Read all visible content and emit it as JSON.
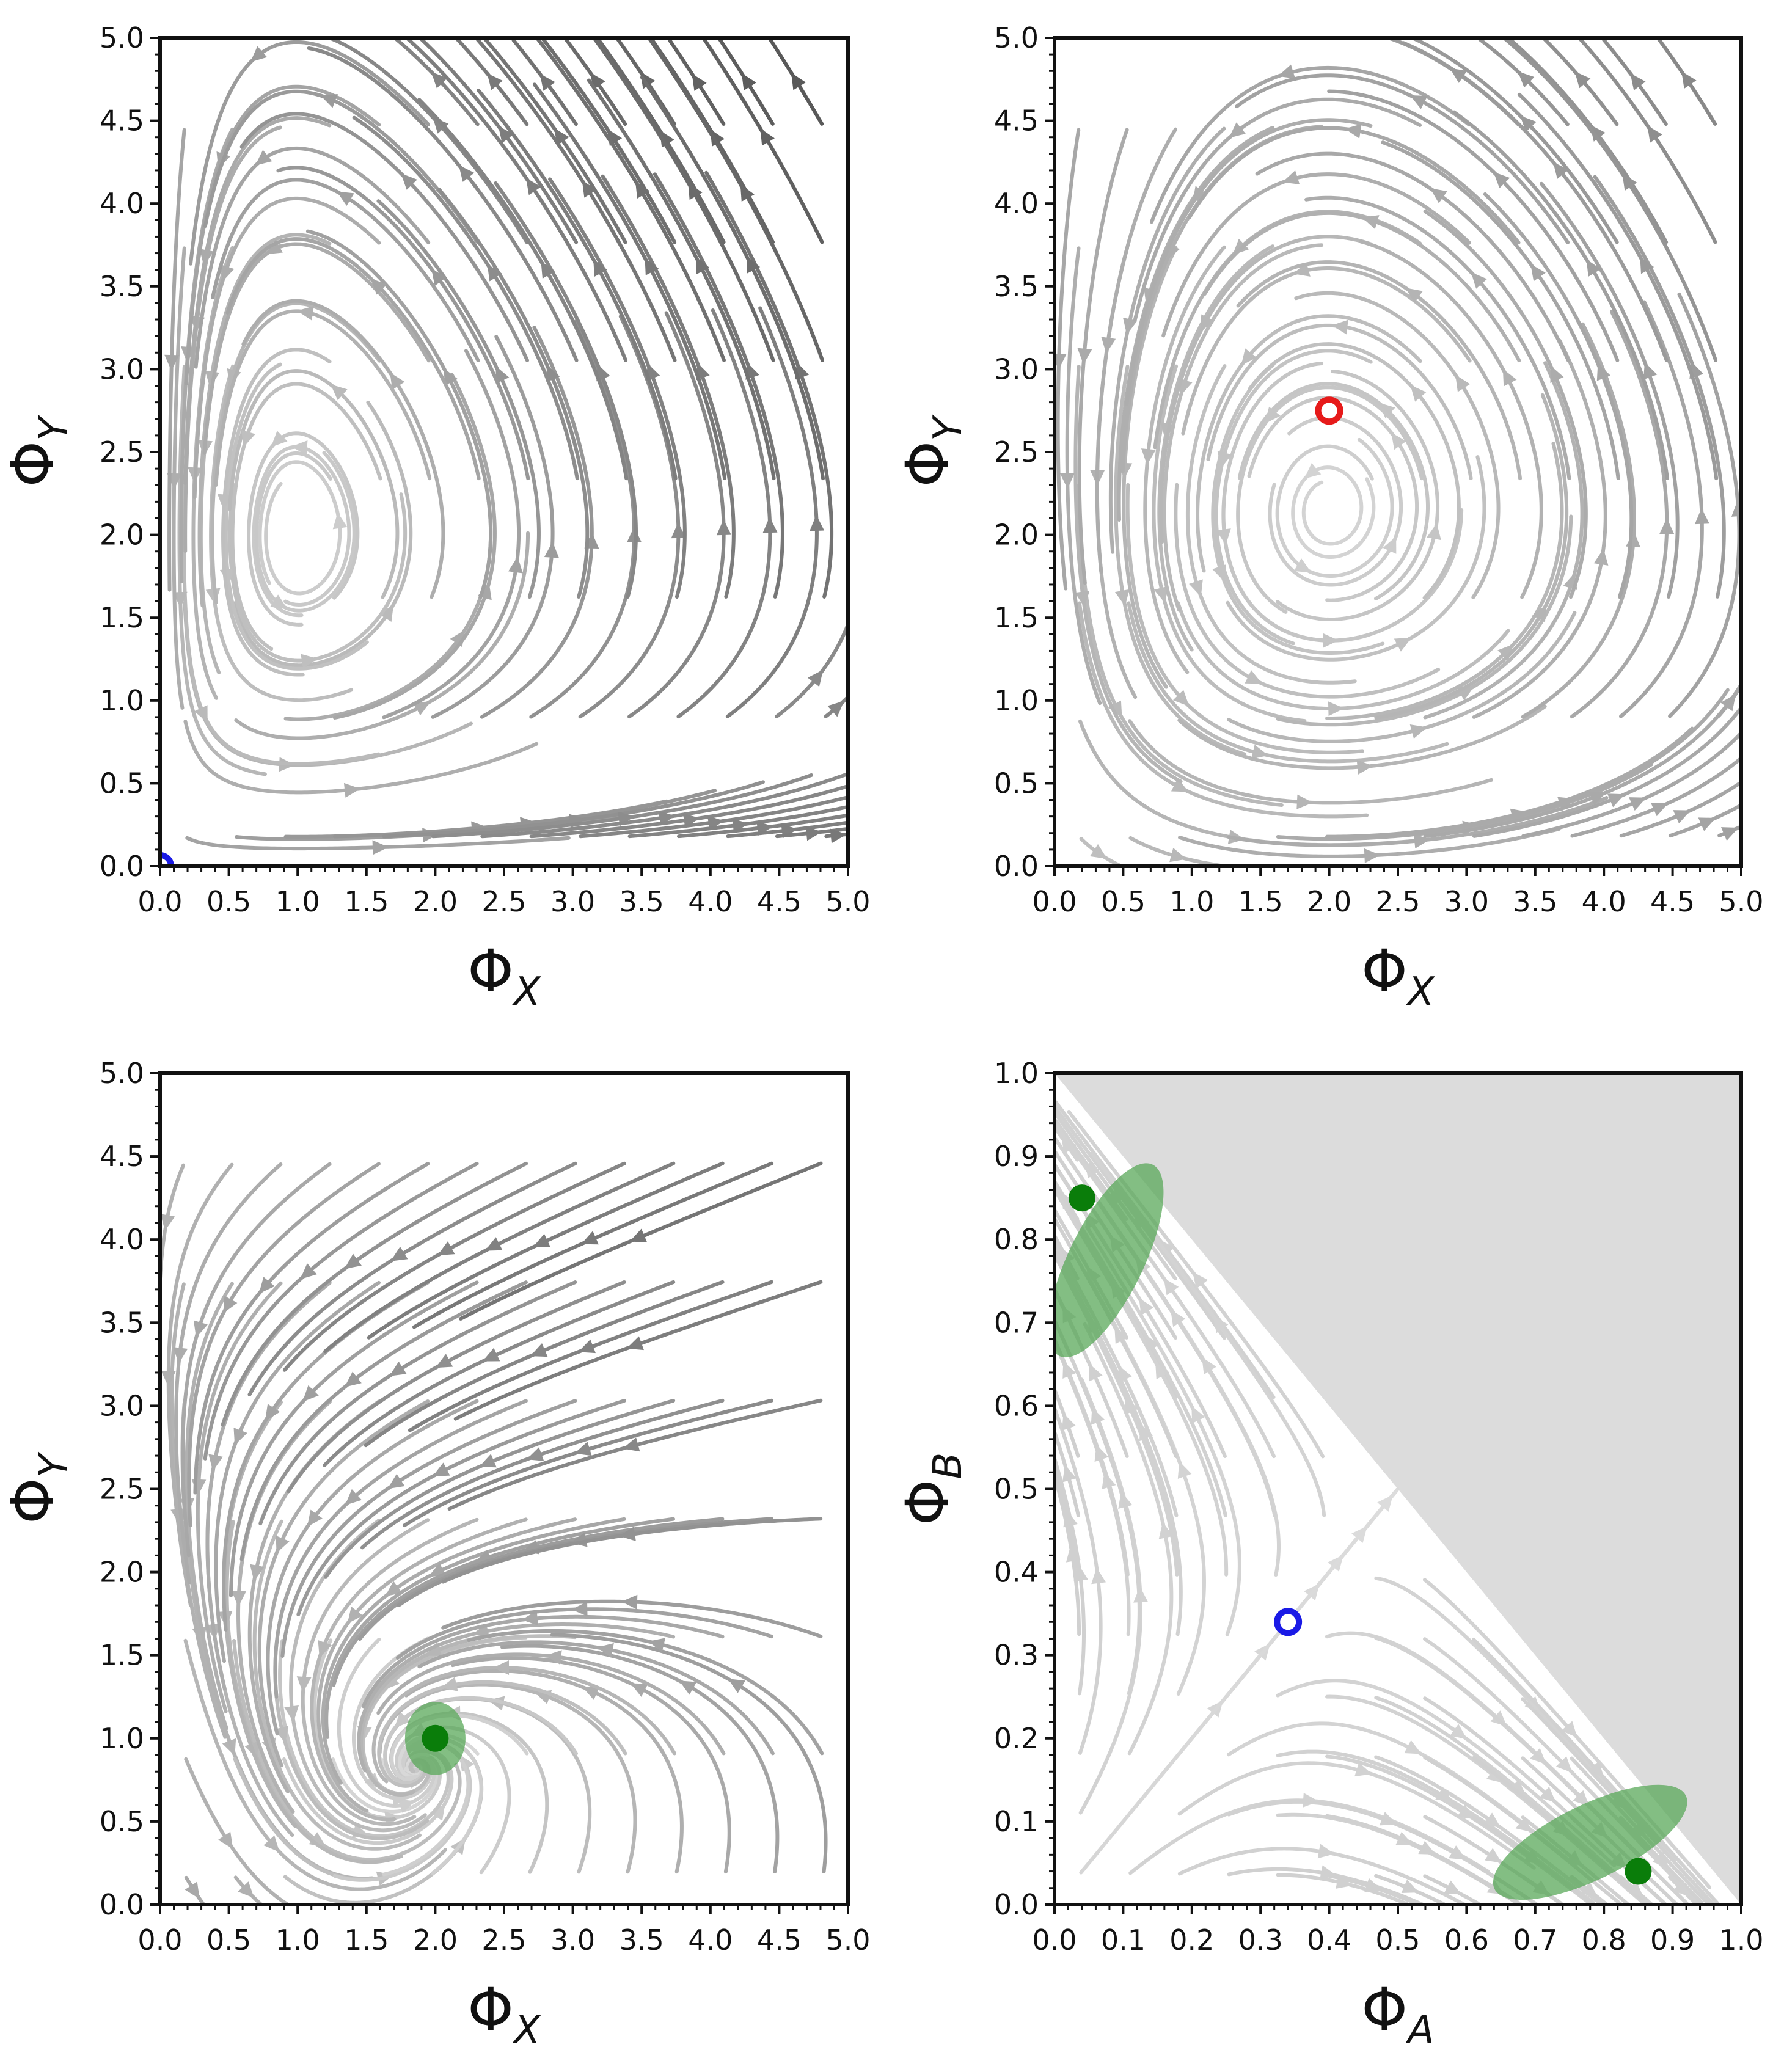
{
  "colors": {
    "stream_dark": "#555555",
    "stream_light": "#dddddd",
    "fixed_unstable_blue": "#1a1ae6",
    "fixed_unstable_red": "#e61a1a",
    "fixed_stable_green": "#0a7d0a",
    "basin_green": "#5aa85a",
    "forbidden_region": "#dcdcdc"
  },
  "chart_data": [
    {
      "type": "streamplot",
      "panel": "top-left",
      "xlabel": "Φ_X",
      "ylabel": "Φ_Y",
      "xlim": [
        0,
        5
      ],
      "ylim": [
        0,
        5
      ],
      "x_ticks": [
        "0.0",
        "0.5",
        "1.0",
        "1.5",
        "2.0",
        "2.5",
        "3.0",
        "3.5",
        "4.0",
        "4.5",
        "5.0"
      ],
      "y_ticks": [
        "0.0",
        "0.5",
        "1.0",
        "1.5",
        "2.0",
        "2.5",
        "3.0",
        "3.5",
        "4.0",
        "4.5",
        "5.0"
      ],
      "dynamics": "closed orbits around a center",
      "center": [
        1.0,
        2.0
      ],
      "fixed_points": [
        {
          "x": 0.0,
          "y": 0.0,
          "kind": "unstable",
          "color": "blue"
        }
      ]
    },
    {
      "type": "streamplot",
      "panel": "top-right",
      "xlabel": "Φ_X",
      "ylabel": "Φ_Y",
      "xlim": [
        0,
        5
      ],
      "ylim": [
        0,
        5
      ],
      "x_ticks": [
        "0.0",
        "0.5",
        "1.0",
        "1.5",
        "2.0",
        "2.5",
        "3.0",
        "3.5",
        "4.0",
        "4.5",
        "5.0"
      ],
      "y_ticks": [
        "0.0",
        "0.5",
        "1.0",
        "1.5",
        "2.0",
        "2.5",
        "3.0",
        "3.5",
        "4.0",
        "4.5",
        "5.0"
      ],
      "dynamics": "unstable spiral",
      "fixed_points": [
        {
          "x": 2.0,
          "y": 2.75,
          "kind": "unstable",
          "color": "red"
        }
      ]
    },
    {
      "type": "streamplot",
      "panel": "bottom-left",
      "xlabel": "Φ_X",
      "ylabel": "Φ_Y",
      "xlim": [
        0,
        5
      ],
      "ylim": [
        0,
        5
      ],
      "x_ticks": [
        "0.0",
        "0.5",
        "1.0",
        "1.5",
        "2.0",
        "2.5",
        "3.0",
        "3.5",
        "4.0",
        "4.5",
        "5.0"
      ],
      "y_ticks": [
        "0.0",
        "0.5",
        "1.0",
        "1.5",
        "2.0",
        "2.5",
        "3.0",
        "3.5",
        "4.0",
        "4.5",
        "5.0"
      ],
      "dynamics": "stable focus",
      "fixed_points": [
        {
          "x": 2.0,
          "y": 1.0,
          "kind": "stable",
          "color": "green",
          "basin_rx": 0.22,
          "basin_ry": 0.22
        }
      ]
    },
    {
      "type": "streamplot",
      "panel": "bottom-right",
      "xlabel": "Φ_A",
      "ylabel": "Φ_B",
      "xlim": [
        0,
        1
      ],
      "ylim": [
        0,
        1
      ],
      "x_ticks": [
        "0.0",
        "0.1",
        "0.2",
        "0.3",
        "0.4",
        "0.5",
        "0.6",
        "0.7",
        "0.8",
        "0.9",
        "1.0"
      ],
      "y_ticks": [
        "0.0",
        "0.1",
        "0.2",
        "0.3",
        "0.4",
        "0.5",
        "0.6",
        "0.7",
        "0.8",
        "0.9",
        "1.0"
      ],
      "dynamics": "bistable, simplex constraint A+B<=1",
      "forbidden_region": "A + B > 1",
      "fixed_points": [
        {
          "x": 0.04,
          "y": 0.85,
          "kind": "stable",
          "color": "green"
        },
        {
          "x": 0.34,
          "y": 0.34,
          "kind": "unstable",
          "color": "blue"
        },
        {
          "x": 0.85,
          "y": 0.04,
          "kind": "stable",
          "color": "green"
        }
      ],
      "basins": [
        {
          "cx": 0.075,
          "cy": 0.775,
          "rx": 0.155,
          "ry": 0.045,
          "angle_deg": -64
        },
        {
          "cx": 0.78,
          "cy": 0.075,
          "rx": 0.155,
          "ry": 0.045,
          "angle_deg": -26
        }
      ]
    }
  ]
}
